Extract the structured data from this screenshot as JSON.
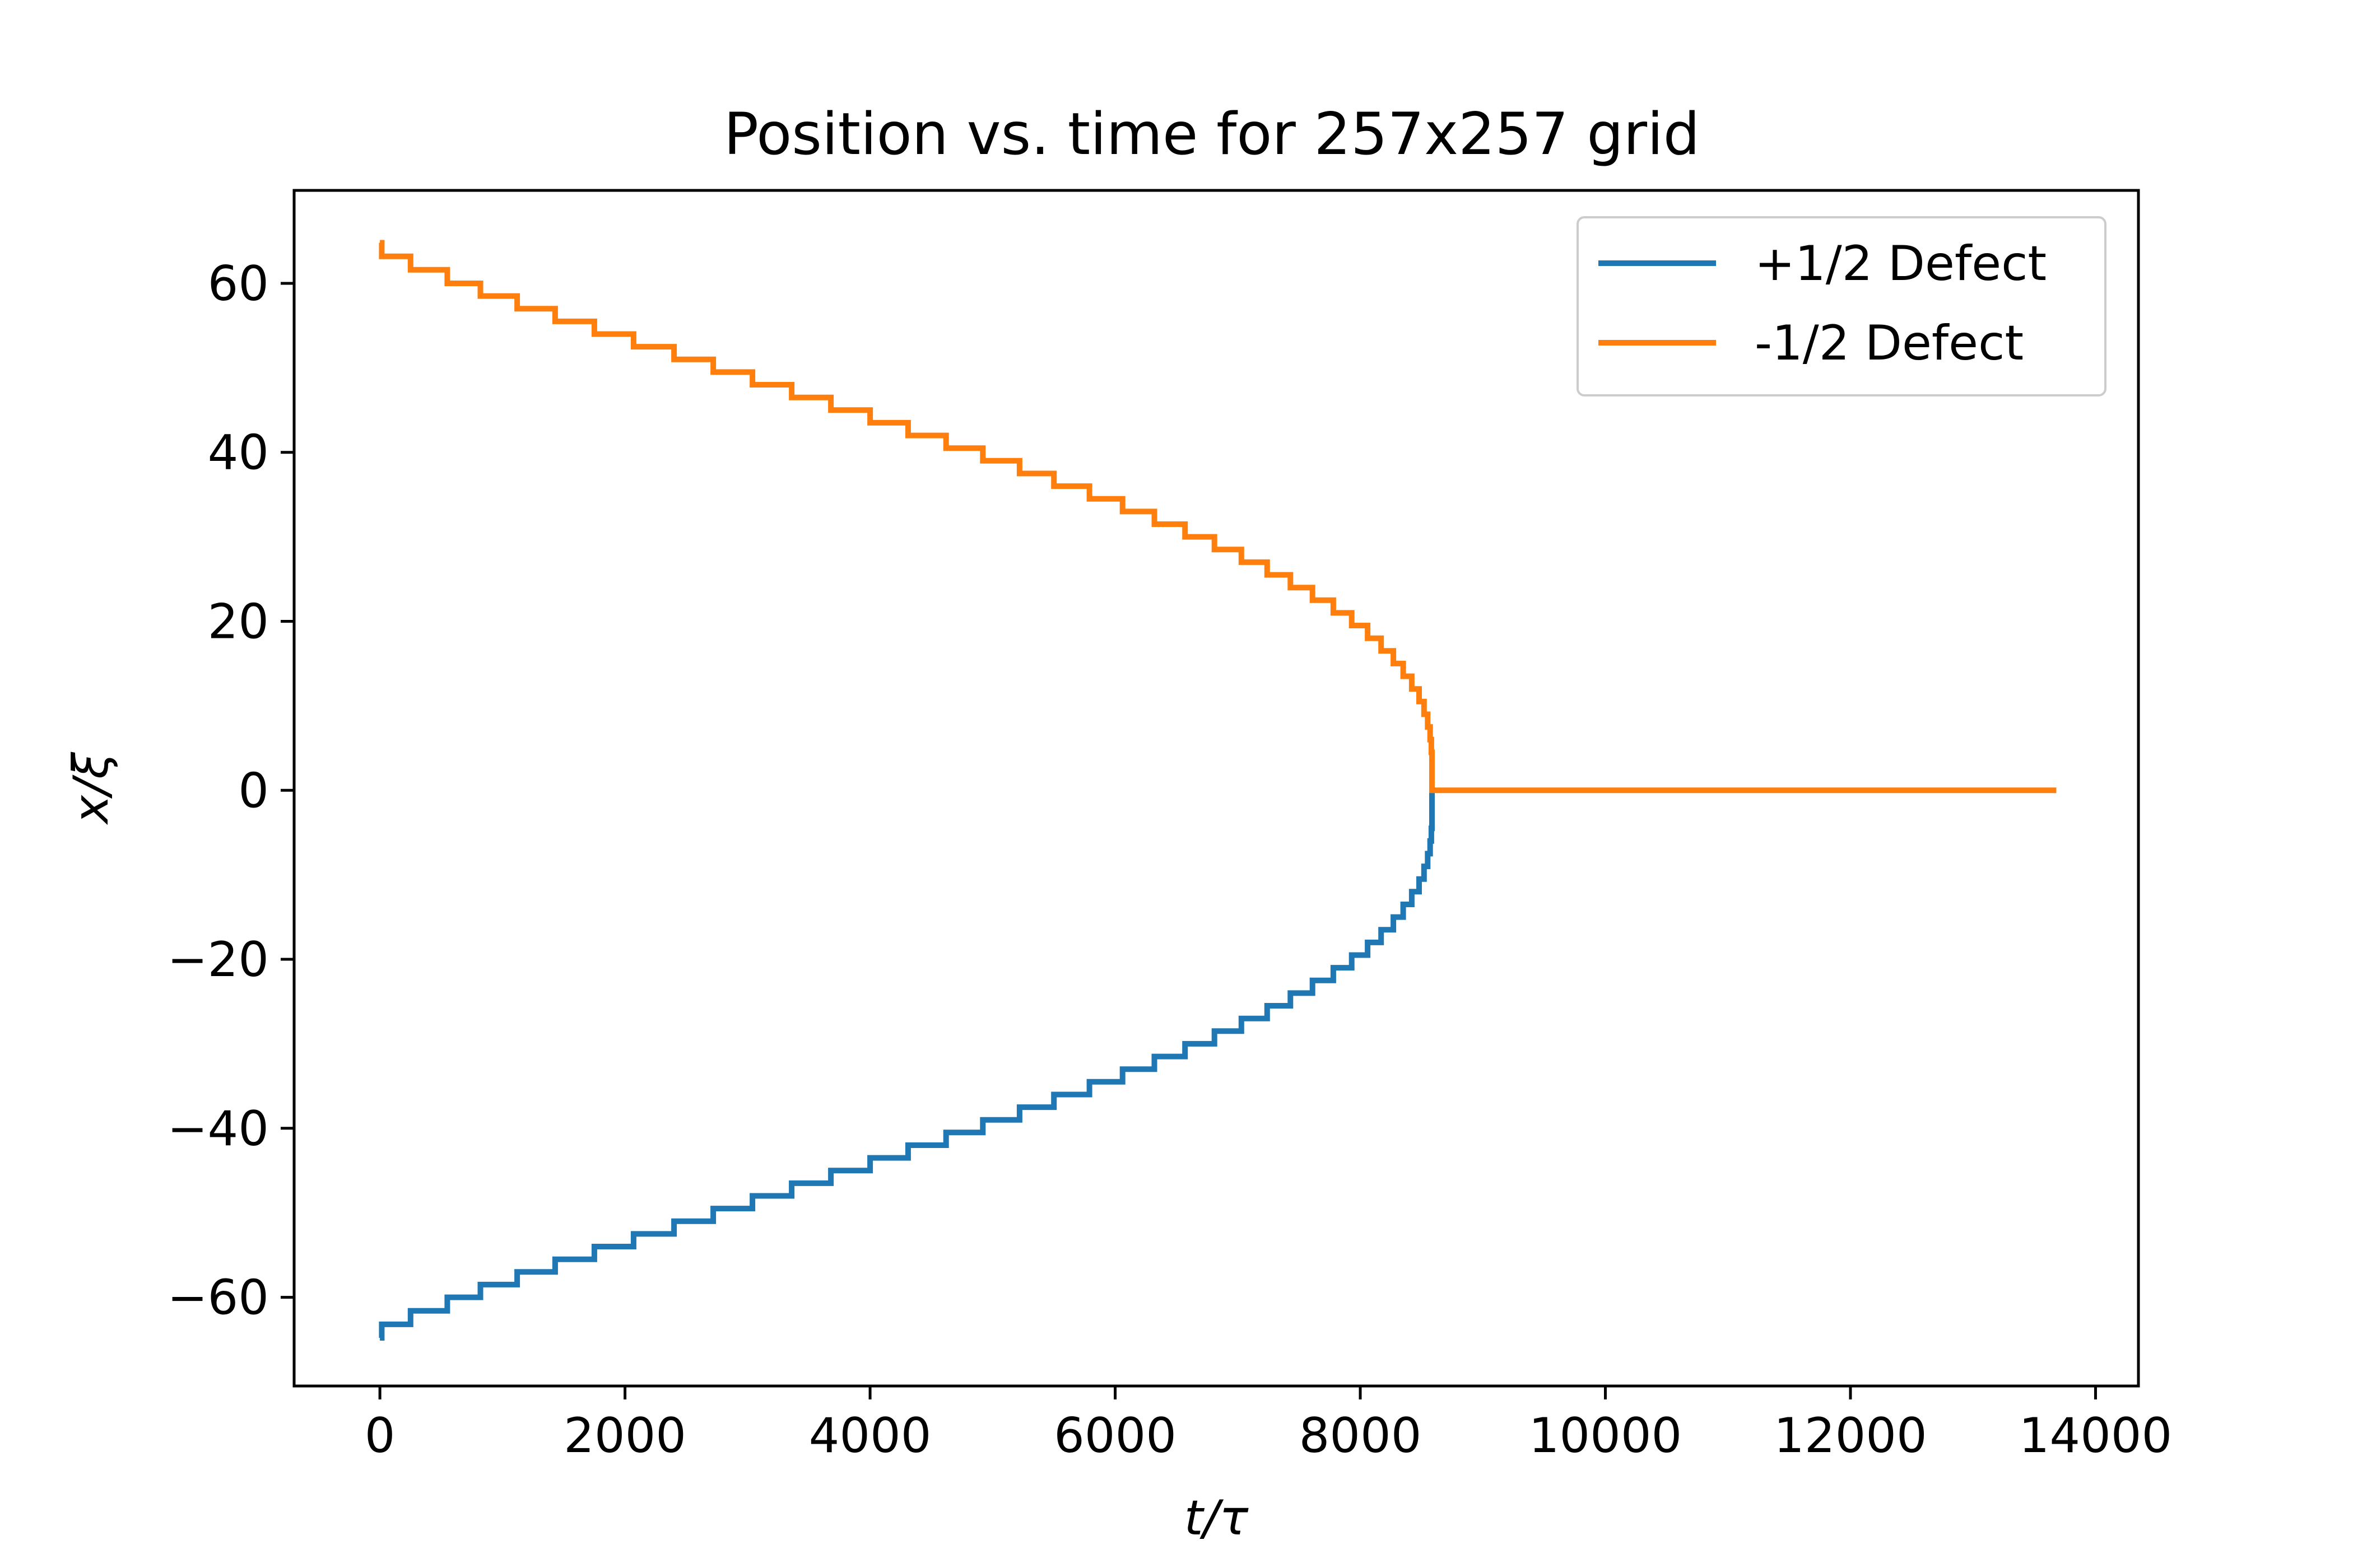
{
  "chart_data": {
    "type": "line",
    "title": "Position vs. time for 257x257 grid",
    "xlabel": "t/τ",
    "ylabel": "x/ξ",
    "xlim": [
      -700,
      14350
    ],
    "ylim": [
      -70.5,
      71
    ],
    "xticks": [
      0,
      2000,
      4000,
      6000,
      8000,
      10000,
      12000,
      14000
    ],
    "xtick_labels": [
      "0",
      "2000",
      "4000",
      "6000",
      "8000",
      "10000",
      "12000",
      "14000"
    ],
    "yticks": [
      -60,
      -40,
      -20,
      0,
      20,
      40,
      60
    ],
    "ytick_labels": [
      "−60",
      "−40",
      "−20",
      "0",
      "20",
      "40",
      "60"
    ],
    "grid": false,
    "legend_position": "top-right",
    "series": [
      {
        "name": "+1/2 Defect",
        "color": "#1f77b4",
        "step": true,
        "x": [
          0,
          15,
          250,
          550,
          820,
          1120,
          1430,
          1750,
          2070,
          2400,
          2720,
          3040,
          3360,
          3680,
          4000,
          4310,
          4620,
          4920,
          5220,
          5500,
          5790,
          6060,
          6320,
          6570,
          6810,
          7030,
          7240,
          7430,
          7610,
          7780,
          7930,
          8060,
          8170,
          8270,
          8350,
          8420,
          8480,
          8520,
          8550,
          8570,
          8580,
          8585
        ],
        "y": [
          -64.8,
          -63.2,
          -61.6,
          -60.0,
          -58.5,
          -57.0,
          -55.5,
          -54.0,
          -52.5,
          -51.0,
          -49.5,
          -48.0,
          -46.5,
          -45.0,
          -43.5,
          -42.0,
          -40.5,
          -39.0,
          -37.5,
          -36.0,
          -34.5,
          -33.0,
          -31.5,
          -30.0,
          -28.5,
          -27.0,
          -25.5,
          -24.0,
          -22.5,
          -21.0,
          -19.5,
          -18.0,
          -16.5,
          -15.0,
          -13.5,
          -12.0,
          -10.5,
          -9.0,
          -7.5,
          -6.0,
          -4.5,
          0
        ]
      },
      {
        "name": "-1/2 Defect",
        "color": "#ff7f0e",
        "step": true,
        "x": [
          0,
          15,
          250,
          550,
          820,
          1120,
          1430,
          1750,
          2070,
          2400,
          2720,
          3040,
          3360,
          3680,
          4000,
          4310,
          4620,
          4920,
          5220,
          5500,
          5790,
          6060,
          6320,
          6570,
          6810,
          7030,
          7240,
          7430,
          7610,
          7780,
          7930,
          8060,
          8170,
          8270,
          8350,
          8420,
          8480,
          8520,
          8550,
          8570,
          8580,
          8585,
          13680
        ],
        "y": [
          64.8,
          63.2,
          61.6,
          60.0,
          58.5,
          57.0,
          55.5,
          54.0,
          52.5,
          51.0,
          49.5,
          48.0,
          46.5,
          45.0,
          43.5,
          42.0,
          40.5,
          39.0,
          37.5,
          36.0,
          34.5,
          33.0,
          31.5,
          30.0,
          28.5,
          27.0,
          25.5,
          24.0,
          22.5,
          21.0,
          19.5,
          18.0,
          16.5,
          15.0,
          13.5,
          12.0,
          10.5,
          9.0,
          7.5,
          6.0,
          4.5,
          0,
          0
        ]
      }
    ]
  }
}
